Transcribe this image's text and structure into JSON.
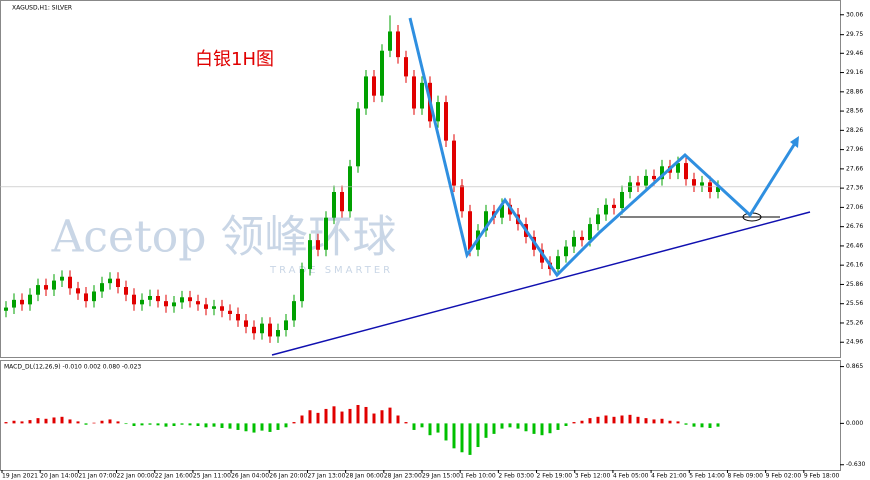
{
  "chart_data": {
    "type": "candlestick",
    "title": "XAGUSD,H1: SILVER",
    "annotation": "白银1H图",
    "watermark": "Acetop 领峰环球",
    "watermark_sub": "TRADE SMARTER",
    "up_color": "#00a000",
    "down_color": "#e00000",
    "ylim": [
      24.73,
      30.29
    ],
    "yticks": [
      24.96,
      25.26,
      25.56,
      25.86,
      26.16,
      26.46,
      26.76,
      27.06,
      27.36,
      27.66,
      27.96,
      28.26,
      28.56,
      28.86,
      29.16,
      29.46,
      29.75,
      30.06
    ],
    "x_labels": [
      "19 Jan 2021",
      "20 Jan 14:00",
      "21 Jan 07:00",
      "22 Jan 00:00",
      "22 Jan 16:00",
      "25 Jan 11:00",
      "26 Jan 04:00",
      "26 Jan 20:00",
      "27 Jan 13:00",
      "28 Jan 06:00",
      "28 Jan 23:00",
      "29 Jan 15:00",
      "1 Feb 10:00",
      "2 Feb 03:00",
      "2 Feb 19:00",
      "3 Feb 12:00",
      "4 Feb 05:00",
      "4 Feb 21:00",
      "5 Feb 14:00",
      "8 Feb 09:00",
      "9 Feb 02:00",
      "9 Feb 18:00"
    ],
    "open": [
      25.45,
      25.5,
      25.62,
      25.55,
      25.7,
      25.85,
      25.78,
      25.92,
      25.98,
      25.8,
      25.72,
      25.6,
      25.75,
      25.88,
      25.95,
      25.82,
      25.7,
      25.55,
      25.62,
      25.68,
      25.6,
      25.52,
      25.58,
      25.66,
      25.6,
      25.55,
      25.48,
      25.52,
      25.45,
      25.4,
      25.3,
      25.2,
      25.1,
      25.25,
      25.05,
      25.15,
      25.3,
      25.6,
      26.1,
      26.55,
      26.4,
      26.9,
      27.3,
      27.0,
      27.7,
      28.6,
      29.1,
      28.8,
      29.5,
      29.8,
      29.4,
      29.1,
      28.6,
      29.0,
      28.4,
      28.7,
      28.1,
      27.4,
      27.0,
      26.4,
      26.7,
      27.0,
      26.9,
      27.1,
      26.95,
      26.8,
      26.6,
      26.4,
      26.2,
      26.1,
      26.3,
      26.45,
      26.6,
      26.55,
      26.8,
      26.95,
      27.1,
      27.05,
      27.3,
      27.45,
      27.4,
      27.55,
      27.5,
      27.7,
      27.6,
      27.75,
      27.5,
      27.4,
      27.45,
      27.3
    ],
    "high": [
      25.6,
      25.72,
      25.72,
      25.8,
      25.95,
      25.95,
      26.02,
      26.08,
      26.08,
      25.9,
      25.82,
      25.85,
      25.98,
      26.05,
      26.05,
      25.92,
      25.8,
      25.72,
      25.78,
      25.78,
      25.7,
      25.68,
      25.76,
      25.76,
      25.7,
      25.65,
      25.62,
      25.62,
      25.55,
      25.5,
      25.4,
      25.3,
      25.35,
      25.35,
      25.25,
      25.4,
      25.7,
      26.2,
      26.65,
      26.65,
      27.0,
      27.4,
      27.4,
      27.8,
      28.7,
      29.2,
      29.2,
      29.6,
      30.05,
      29.9,
      29.5,
      29.2,
      29.1,
      29.1,
      28.8,
      28.8,
      28.2,
      27.5,
      27.1,
      26.8,
      27.1,
      27.1,
      27.2,
      27.2,
      27.05,
      26.9,
      26.7,
      26.5,
      26.3,
      26.4,
      26.55,
      26.7,
      26.7,
      26.9,
      27.05,
      27.2,
      27.2,
      27.4,
      27.55,
      27.55,
      27.65,
      27.65,
      27.8,
      27.8,
      27.85,
      27.85,
      27.6,
      27.55,
      27.55,
      27.48
    ],
    "low": [
      25.35,
      25.4,
      25.45,
      25.45,
      25.6,
      25.68,
      25.68,
      25.82,
      25.7,
      25.62,
      25.5,
      25.5,
      25.65,
      25.78,
      25.72,
      25.6,
      25.45,
      25.45,
      25.52,
      25.5,
      25.42,
      25.42,
      25.48,
      25.5,
      25.45,
      25.38,
      25.38,
      25.35,
      25.3,
      25.2,
      25.1,
      25.0,
      25.0,
      24.95,
      24.95,
      25.05,
      25.2,
      25.5,
      26.0,
      26.3,
      26.3,
      26.8,
      26.9,
      26.9,
      27.6,
      28.5,
      28.7,
      28.7,
      29.4,
      29.3,
      29.0,
      28.5,
      28.5,
      28.3,
      28.3,
      28.0,
      27.3,
      26.9,
      26.3,
      26.3,
      26.6,
      26.8,
      26.8,
      26.85,
      26.7,
      26.5,
      26.3,
      26.1,
      26.0,
      26.0,
      26.2,
      26.35,
      26.45,
      26.45,
      26.7,
      26.85,
      26.95,
      26.95,
      27.2,
      27.3,
      27.3,
      27.4,
      27.4,
      27.5,
      27.5,
      27.4,
      27.3,
      27.3,
      27.2,
      27.2
    ],
    "close": [
      25.5,
      25.62,
      25.55,
      25.7,
      25.85,
      25.78,
      25.92,
      25.98,
      25.8,
      25.72,
      25.6,
      25.75,
      25.88,
      25.95,
      25.82,
      25.7,
      25.55,
      25.62,
      25.68,
      25.6,
      25.52,
      25.58,
      25.66,
      25.6,
      25.55,
      25.48,
      25.52,
      25.45,
      25.4,
      25.3,
      25.2,
      25.1,
      25.25,
      25.05,
      25.15,
      25.3,
      25.6,
      26.1,
      26.55,
      26.4,
      26.9,
      27.3,
      27.0,
      27.7,
      28.6,
      29.1,
      28.8,
      29.5,
      29.8,
      29.4,
      29.1,
      28.6,
      29.0,
      28.4,
      28.7,
      28.1,
      27.4,
      27.0,
      26.4,
      26.7,
      27.0,
      26.9,
      27.1,
      26.95,
      26.8,
      26.6,
      26.4,
      26.2,
      26.1,
      26.3,
      26.45,
      26.6,
      26.55,
      26.8,
      26.95,
      27.1,
      27.05,
      27.3,
      27.45,
      27.4,
      27.55,
      27.5,
      27.7,
      27.6,
      27.75,
      27.5,
      27.4,
      27.45,
      27.3,
      27.38
    ],
    "macd": {
      "title": "MACD_DL(12,26,9) -0.010 0.002 0.080 -0.023",
      "pos_color": "#e00000",
      "neg_color": "#00c000",
      "ylim": [
        -0.71,
        0.95
      ],
      "yticks": [
        {
          "value": -0.63,
          "label": "-0.630"
        },
        {
          "value": 0,
          "label": "0.000"
        },
        0.865
      ],
      "values": [
        0.02,
        0.04,
        0.03,
        0.05,
        0.08,
        0.07,
        0.09,
        0.1,
        0.06,
        0.03,
        -0.02,
        0.01,
        0.04,
        0.06,
        0.03,
        -0.01,
        -0.04,
        -0.03,
        -0.02,
        -0.03,
        -0.05,
        -0.04,
        -0.02,
        -0.03,
        -0.04,
        -0.06,
        -0.05,
        -0.07,
        -0.08,
        -0.1,
        -0.12,
        -0.14,
        -0.11,
        -0.13,
        -0.1,
        -0.06,
        0.02,
        0.12,
        0.2,
        0.16,
        0.22,
        0.26,
        0.18,
        0.22,
        0.28,
        0.25,
        0.15,
        0.2,
        0.24,
        0.12,
        0.02,
        -0.1,
        -0.06,
        -0.18,
        -0.14,
        -0.26,
        -0.38,
        -0.44,
        -0.48,
        -0.36,
        -0.22,
        -0.16,
        -0.08,
        -0.06,
        -0.08,
        -0.12,
        -0.16,
        -0.18,
        -0.15,
        -0.1,
        -0.04,
        0.02,
        0.04,
        0.08,
        0.1,
        0.12,
        0.1,
        0.12,
        0.13,
        0.1,
        0.08,
        0.06,
        0.07,
        0.04,
        0.03,
        -0.02,
        -0.05,
        -0.06,
        -0.07,
        -0.05
      ]
    }
  }
}
